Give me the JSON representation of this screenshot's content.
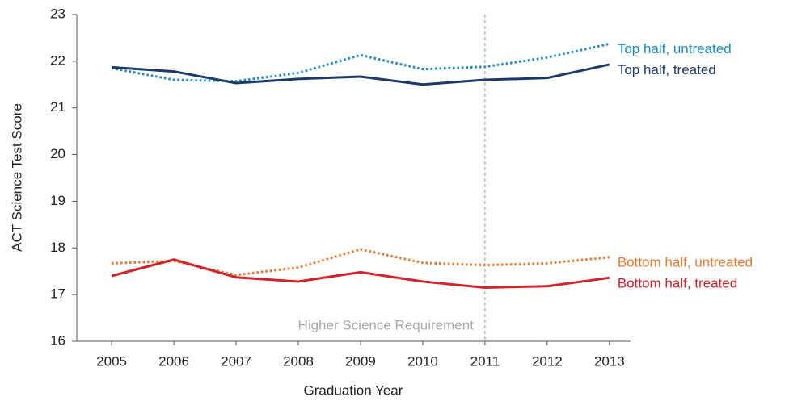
{
  "chart_data": {
    "type": "line",
    "x_label": "Graduation Year",
    "y_label": "ACT Science Test Score",
    "x": [
      2005,
      2006,
      2007,
      2008,
      2009,
      2010,
      2011,
      2012,
      2013
    ],
    "xlim": [
      2004.44,
      2013.34
    ],
    "xticks": [
      2005,
      2006,
      2007,
      2008,
      2009,
      2010,
      2011,
      2012,
      2013
    ],
    "ylim": [
      16,
      23
    ],
    "yticks": [
      16,
      17,
      18,
      19,
      20,
      21,
      22,
      23
    ],
    "annotation": {
      "text": "Higher Science Requirement",
      "x": 2011
    },
    "series": [
      {
        "name": "Top half, untreated",
        "color": "#1a8ac6",
        "dash": "dotted",
        "values": [
          21.85,
          21.6,
          21.57,
          21.75,
          22.13,
          21.83,
          21.88,
          22.08,
          22.37
        ]
      },
      {
        "name": "Top half, treated",
        "color": "#1b3a6b",
        "dash": "solid",
        "values": [
          21.87,
          21.78,
          21.53,
          21.62,
          21.67,
          21.5,
          21.6,
          21.64,
          21.93
        ]
      },
      {
        "name": "Bottom half, untreated",
        "color": "#e8772e",
        "dash": "dotted",
        "values": [
          17.67,
          17.72,
          17.42,
          17.58,
          17.97,
          17.68,
          17.63,
          17.67,
          17.8
        ]
      },
      {
        "name": "Bottom half, treated",
        "color": "#d2232a",
        "dash": "solid",
        "values": [
          17.4,
          17.75,
          17.37,
          17.28,
          17.48,
          17.28,
          17.15,
          17.18,
          17.36
        ]
      }
    ]
  }
}
